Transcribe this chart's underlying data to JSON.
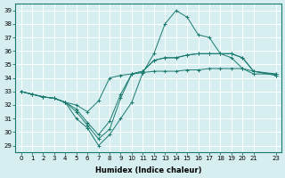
{
  "xlabel": "Humidex (Indice chaleur)",
  "background_color": "#d6eef0",
  "grid_color": "#ffffff",
  "line_color": "#1a7a6e",
  "xlim": [
    -0.5,
    23.5
  ],
  "ylim": [
    28.5,
    39.5
  ],
  "yticks": [
    29,
    30,
    31,
    32,
    33,
    34,
    35,
    36,
    37,
    38,
    39
  ],
  "xticks": [
    0,
    1,
    2,
    3,
    4,
    5,
    6,
    7,
    8,
    9,
    10,
    11,
    12,
    13,
    14,
    15,
    16,
    17,
    18,
    19,
    20,
    21,
    23
  ],
  "series": [
    [
      33.0,
      32.8,
      32.6,
      32.5,
      32.2,
      31.0,
      30.3,
      29.0,
      29.8,
      31.0,
      32.2,
      34.4,
      35.8,
      38.0,
      39.0,
      38.5,
      37.2,
      37.0,
      35.8,
      35.5,
      34.7,
      34.3,
      34.3
    ],
    [
      33.0,
      32.8,
      32.6,
      32.5,
      32.2,
      31.5,
      30.5,
      29.5,
      30.2,
      32.5,
      34.3,
      34.5,
      35.3,
      35.5,
      35.5,
      35.7,
      35.8,
      35.8,
      35.8,
      35.8,
      35.5,
      34.5,
      34.2
    ],
    [
      33.0,
      32.8,
      32.6,
      32.5,
      32.2,
      31.7,
      30.7,
      29.8,
      30.8,
      32.8,
      34.3,
      34.5,
      35.3,
      35.5,
      35.5,
      35.7,
      35.8,
      35.8,
      35.8,
      35.8,
      35.5,
      34.5,
      34.2
    ],
    [
      33.0,
      32.8,
      32.6,
      32.5,
      32.2,
      32.0,
      31.5,
      32.3,
      34.0,
      34.2,
      34.3,
      34.4,
      34.5,
      34.5,
      34.5,
      34.6,
      34.6,
      34.7,
      34.7,
      34.7,
      34.7,
      34.5,
      34.3
    ]
  ],
  "x_values": [
    0,
    1,
    2,
    3,
    4,
    5,
    6,
    7,
    8,
    9,
    10,
    11,
    12,
    13,
    14,
    15,
    16,
    17,
    18,
    19,
    20,
    21,
    23
  ]
}
